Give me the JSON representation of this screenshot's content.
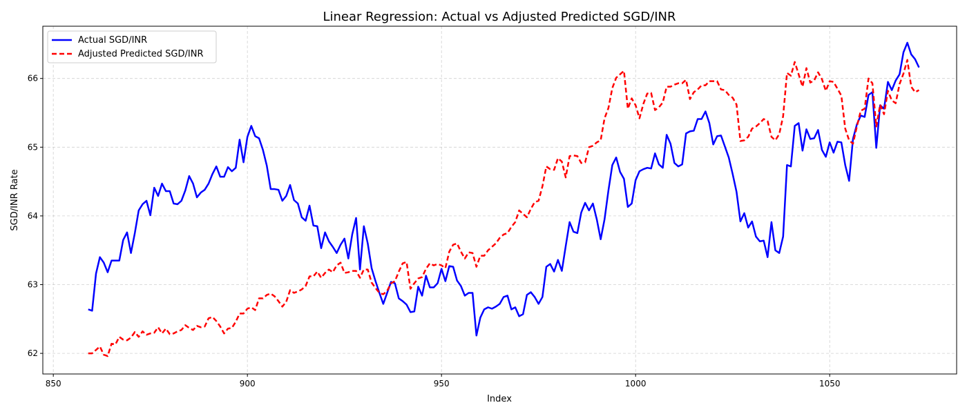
{
  "chart_data": {
    "type": "line",
    "title": "Linear Regression: Actual vs Adjusted Predicted SGD/INR",
    "xlabel": "Index",
    "ylabel": "SGD/INR Rate",
    "xlim": [
      847.3,
      1082.7
    ],
    "ylim": [
      61.7,
      66.76
    ],
    "xticks": [
      850,
      900,
      950,
      1000,
      1050
    ],
    "yticks": [
      62,
      63,
      64,
      65,
      66
    ],
    "grid": true,
    "legend_position": "upper-left",
    "x_start": 859,
    "series": [
      {
        "name": "Actual SGD/INR",
        "color": "#0000ff",
        "style": "solid",
        "values": [
          62.64,
          62.62,
          63.16,
          63.4,
          63.32,
          63.18,
          63.35,
          63.35,
          63.35,
          63.65,
          63.76,
          63.46,
          63.75,
          64.08,
          64.17,
          64.22,
          64.01,
          64.41,
          64.29,
          64.47,
          64.36,
          64.36,
          64.18,
          64.17,
          64.22,
          64.37,
          64.58,
          64.47,
          64.27,
          64.34,
          64.38,
          64.47,
          64.61,
          64.72,
          64.57,
          64.57,
          64.71,
          64.65,
          64.7,
          65.11,
          64.78,
          65.15,
          65.31,
          65.16,
          65.13,
          64.96,
          64.73,
          64.39,
          64.39,
          64.38,
          64.22,
          64.29,
          64.45,
          64.23,
          64.18,
          63.98,
          63.93,
          64.15,
          63.86,
          63.85,
          63.53,
          63.76,
          63.63,
          63.55,
          63.46,
          63.58,
          63.67,
          63.38,
          63.73,
          63.97,
          63.22,
          63.85,
          63.6,
          63.24,
          63.05,
          62.88,
          62.72,
          62.88,
          63.04,
          63.02,
          62.8,
          62.76,
          62.71,
          62.6,
          62.61,
          62.97,
          62.84,
          63.13,
          62.96,
          62.96,
          63.02,
          63.23,
          63.05,
          63.27,
          63.26,
          63.06,
          62.98,
          62.84,
          62.88,
          62.88,
          62.26,
          62.52,
          62.64,
          62.67,
          62.65,
          62.68,
          62.72,
          62.82,
          62.84,
          62.64,
          62.67,
          62.54,
          62.57,
          62.85,
          62.89,
          62.82,
          62.72,
          62.82,
          63.26,
          63.3,
          63.19,
          63.36,
          63.2,
          63.56,
          63.91,
          63.77,
          63.75,
          64.05,
          64.19,
          64.08,
          64.18,
          63.95,
          63.66,
          63.95,
          64.37,
          64.74,
          64.85,
          64.64,
          64.54,
          64.13,
          64.18,
          64.52,
          64.65,
          64.68,
          64.7,
          64.69,
          64.91,
          64.75,
          64.7,
          65.18,
          65.05,
          64.77,
          64.72,
          64.75,
          65.2,
          65.23,
          65.24,
          65.41,
          65.41,
          65.52,
          65.35,
          65.04,
          65.16,
          65.17,
          65.01,
          64.85,
          64.61,
          64.35,
          63.92,
          64.04,
          63.83,
          63.92,
          63.7,
          63.63,
          63.64,
          63.4,
          63.91,
          63.5,
          63.46,
          63.7,
          64.74,
          64.72,
          65.31,
          65.35,
          64.95,
          65.26,
          65.12,
          65.13,
          65.25,
          64.96,
          64.86,
          65.07,
          64.92,
          65.08,
          65.07,
          64.74,
          64.51,
          65.12,
          65.33,
          65.46,
          65.44,
          65.76,
          65.8,
          64.99,
          65.61,
          65.56,
          65.95,
          65.83,
          65.97,
          66.06,
          66.38,
          66.52,
          66.35,
          66.28,
          66.16
        ]
      },
      {
        "name": "Adjusted Predicted SGD/INR",
        "color": "#ff0000",
        "style": "dashed",
        "values": [
          62.0,
          62.0,
          62.05,
          62.1,
          61.98,
          61.96,
          62.14,
          62.13,
          62.24,
          62.2,
          62.19,
          62.23,
          62.31,
          62.24,
          62.32,
          62.27,
          62.29,
          62.3,
          62.38,
          62.29,
          62.36,
          62.28,
          62.29,
          62.32,
          62.34,
          62.41,
          62.37,
          62.34,
          62.4,
          62.38,
          62.39,
          62.51,
          62.53,
          62.47,
          62.39,
          62.29,
          62.36,
          62.37,
          62.46,
          62.58,
          62.58,
          62.65,
          62.67,
          62.63,
          62.8,
          62.8,
          62.85,
          62.87,
          62.83,
          62.76,
          62.68,
          62.75,
          62.92,
          62.88,
          62.9,
          62.93,
          62.98,
          63.12,
          63.12,
          63.19,
          63.1,
          63.17,
          63.22,
          63.18,
          63.28,
          63.32,
          63.17,
          63.18,
          63.2,
          63.2,
          63.1,
          63.22,
          63.22,
          63.03,
          62.95,
          62.88,
          62.86,
          62.91,
          63.02,
          63.05,
          63.19,
          63.31,
          63.33,
          62.94,
          63.02,
          63.09,
          63.11,
          63.23,
          63.31,
          63.28,
          63.3,
          63.28,
          63.24,
          63.48,
          63.58,
          63.6,
          63.48,
          63.38,
          63.47,
          63.46,
          63.26,
          63.42,
          63.42,
          63.5,
          63.55,
          63.6,
          63.68,
          63.73,
          63.75,
          63.84,
          63.91,
          64.08,
          64.03,
          63.98,
          64.1,
          64.2,
          64.22,
          64.43,
          64.72,
          64.68,
          64.67,
          64.84,
          64.79,
          64.56,
          64.87,
          64.88,
          64.87,
          64.77,
          64.78,
          65.0,
          65.02,
          65.07,
          65.1,
          65.42,
          65.57,
          65.86,
          66.01,
          66.06,
          66.11,
          65.56,
          65.71,
          65.61,
          65.42,
          65.63,
          65.78,
          65.79,
          65.54,
          65.58,
          65.65,
          65.88,
          65.88,
          65.91,
          65.93,
          65.93,
          65.98,
          65.7,
          65.8,
          65.84,
          65.9,
          65.9,
          65.96,
          65.96,
          65.96,
          65.84,
          65.83,
          65.76,
          65.72,
          65.62,
          65.09,
          65.1,
          65.15,
          65.27,
          65.3,
          65.35,
          65.41,
          65.38,
          65.15,
          65.1,
          65.19,
          65.45,
          66.08,
          66.04,
          66.24,
          66.06,
          65.88,
          66.15,
          65.94,
          65.97,
          66.09,
          65.99,
          65.82,
          65.96,
          65.95,
          65.85,
          65.75,
          65.27,
          65.1,
          65.05,
          65.3,
          65.53,
          65.56,
          66.0,
          65.93,
          65.3,
          65.62,
          65.48,
          65.82,
          65.68,
          65.64,
          65.92,
          66.07,
          66.27,
          65.88,
          65.8,
          65.83
        ]
      }
    ]
  }
}
